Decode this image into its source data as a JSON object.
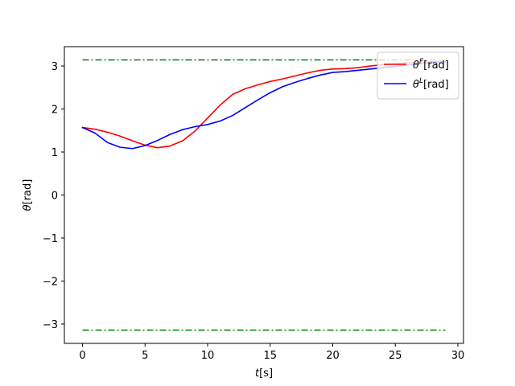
{
  "chart_data": {
    "type": "line",
    "xlabel_base": "t",
    "xlabel_unit": "[s]",
    "ylabel_base": "θ",
    "ylabel_unit": "[rad]",
    "xlim": [
      -1.45,
      30.45
    ],
    "ylim": [
      -3.45,
      3.45
    ],
    "xticks": [
      0,
      5,
      10,
      15,
      20,
      25,
      30
    ],
    "yticks": [
      -3,
      -2,
      -1,
      0,
      1,
      2,
      3
    ],
    "ytick_labels": [
      "−3",
      "−2",
      "−1",
      "0",
      "1",
      "2",
      "3"
    ],
    "legend_position": "top-right",
    "grid": false,
    "x": [
      0,
      1,
      2,
      3,
      4,
      5,
      6,
      7,
      8,
      9,
      10,
      11,
      12,
      13,
      14,
      15,
      16,
      17,
      18,
      19,
      20,
      21,
      22,
      23,
      24,
      25,
      26,
      27,
      28,
      29
    ],
    "series": [
      {
        "name": "θ^F[rad]",
        "legend_base": "θ",
        "legend_sup": "F",
        "legend_unit": "[rad]",
        "color": "#ff0000",
        "style": "solid",
        "values": [
          1.57,
          1.53,
          1.46,
          1.37,
          1.26,
          1.16,
          1.1,
          1.14,
          1.26,
          1.49,
          1.79,
          2.09,
          2.34,
          2.47,
          2.56,
          2.64,
          2.7,
          2.77,
          2.84,
          2.9,
          2.93,
          2.94,
          2.96,
          3.0,
          3.03,
          3.05,
          3.07,
          3.09,
          3.1,
          3.1
        ]
      },
      {
        "name": "θ^L[rad]",
        "legend_base": "θ",
        "legend_sup": "L",
        "legend_unit": "[rad]",
        "color": "#0000ff",
        "style": "solid",
        "values": [
          1.57,
          1.44,
          1.22,
          1.11,
          1.08,
          1.15,
          1.27,
          1.41,
          1.52,
          1.59,
          1.64,
          1.72,
          1.85,
          2.03,
          2.21,
          2.38,
          2.52,
          2.62,
          2.71,
          2.79,
          2.85,
          2.87,
          2.9,
          2.93,
          2.96,
          2.99,
          3.02,
          3.05,
          3.08,
          3.1
        ]
      }
    ],
    "reference_lines": [
      {
        "y": 3.14159,
        "x_range": [
          0,
          29
        ],
        "color": "#008000",
        "style": "dashdot"
      },
      {
        "y": -3.14159,
        "x_range": [
          0,
          29
        ],
        "color": "#008000",
        "style": "dashdot"
      }
    ]
  }
}
